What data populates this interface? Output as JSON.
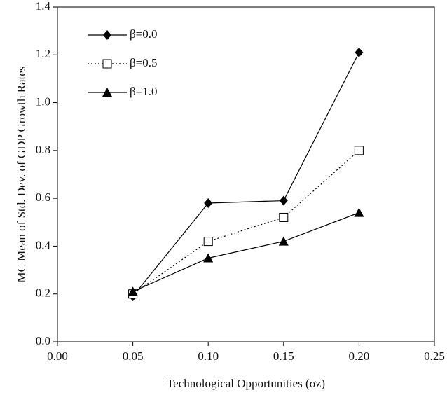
{
  "chart_data": {
    "type": "line",
    "xlabel": "Technological Opportunities (σz)",
    "ylabel": "MC Mean of Std. Dev. of GDP Growth Rates",
    "x": [
      0.05,
      0.1,
      0.15,
      0.2
    ],
    "series": [
      {
        "name": "β=0.0",
        "color": "#000000",
        "marker": "diamond",
        "dash": "solid",
        "values": [
          0.19,
          0.58,
          0.59,
          1.21
        ]
      },
      {
        "name": "β=0.5",
        "color": "#000000",
        "marker": "open-square",
        "dash": "dotted",
        "values": [
          0.2,
          0.42,
          0.52,
          0.8
        ]
      },
      {
        "name": "β=1.0",
        "color": "#000000",
        "marker": "triangle",
        "dash": "solid",
        "values": [
          0.21,
          0.35,
          0.42,
          0.54
        ]
      }
    ],
    "xlim": [
      0,
      0.25
    ],
    "xticks": [
      {
        "value": 0,
        "label": "0.00"
      },
      0.05,
      {
        "value": 0.1,
        "label": "0.10"
      },
      0.15,
      {
        "value": 0.2,
        "label": "0.20"
      },
      {
        "value": 0.25,
        "label": "0.25"
      }
    ],
    "ylim": [
      0,
      1.4
    ],
    "yticks": [
      {
        "value": 0,
        "label": "0.0"
      },
      0.2,
      0.4,
      0.6,
      0.8,
      {
        "value": 1,
        "label": "1.0"
      },
      1.2,
      1.4
    ],
    "legend": "upper-left",
    "grid": false
  }
}
